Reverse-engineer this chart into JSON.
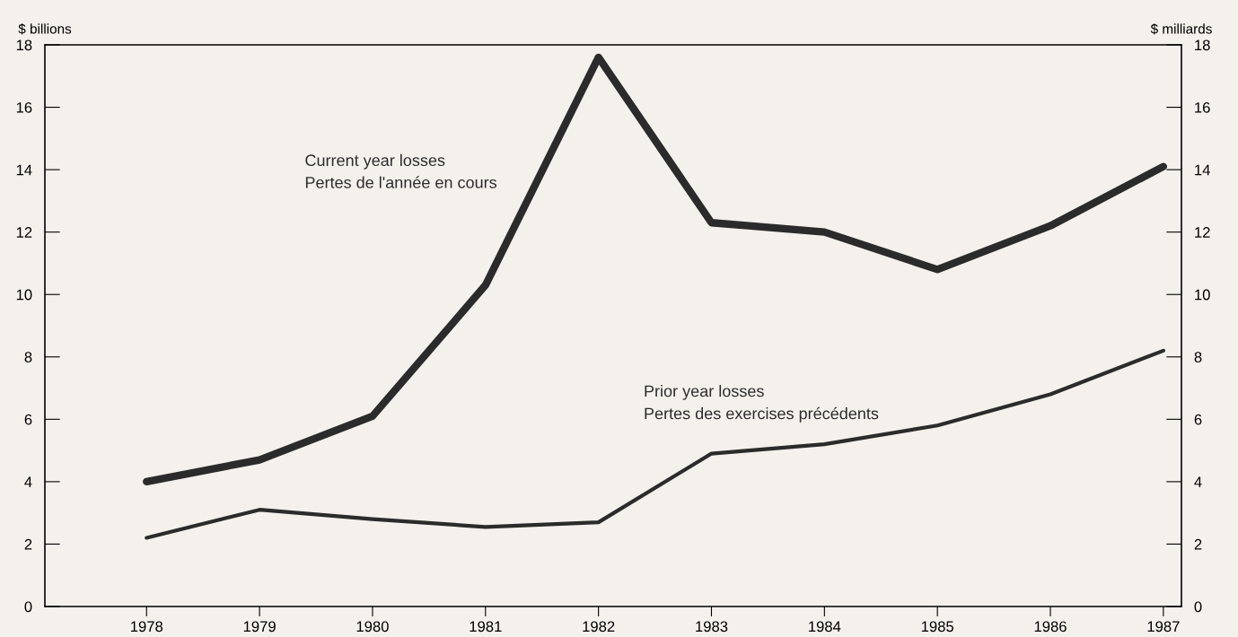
{
  "chart_data": {
    "type": "line",
    "ylabel": "$ billions",
    "y2label": "$ milliards",
    "x": [
      1978,
      1979,
      1980,
      1981,
      1982,
      1983,
      1984,
      1985,
      1986,
      1987
    ],
    "xlim": [
      1977.1,
      1987.16
    ],
    "xticks": [
      1978,
      1979,
      1980,
      1981,
      1982,
      1983,
      1984,
      1985,
      1986,
      1987
    ],
    "ylim": [
      0,
      18
    ],
    "yticks": [
      0,
      2,
      4,
      6,
      8,
      10,
      12,
      14,
      16,
      18
    ],
    "y2lim": [
      0,
      18
    ],
    "y2ticks": [
      0,
      2,
      4,
      6,
      8,
      10,
      12,
      14,
      16,
      18
    ],
    "series": [
      {
        "name": "Current year losses\nPertes de l'année en cours",
        "color": "#2b2b2b",
        "values": [
          4.0,
          4.7,
          6.1,
          10.3,
          17.6,
          12.3,
          12.0,
          10.8,
          12.2,
          14.1
        ]
      },
      {
        "name": "Prior year losses\nPertes des exercises précédents",
        "color": "#2b2b2b",
        "values": [
          2.2,
          3.1,
          2.8,
          2.55,
          2.7,
          4.9,
          5.2,
          5.8,
          6.8,
          8.2
        ]
      }
    ],
    "grid": false,
    "legend": false,
    "marker": "none",
    "line_style": "solid"
  }
}
